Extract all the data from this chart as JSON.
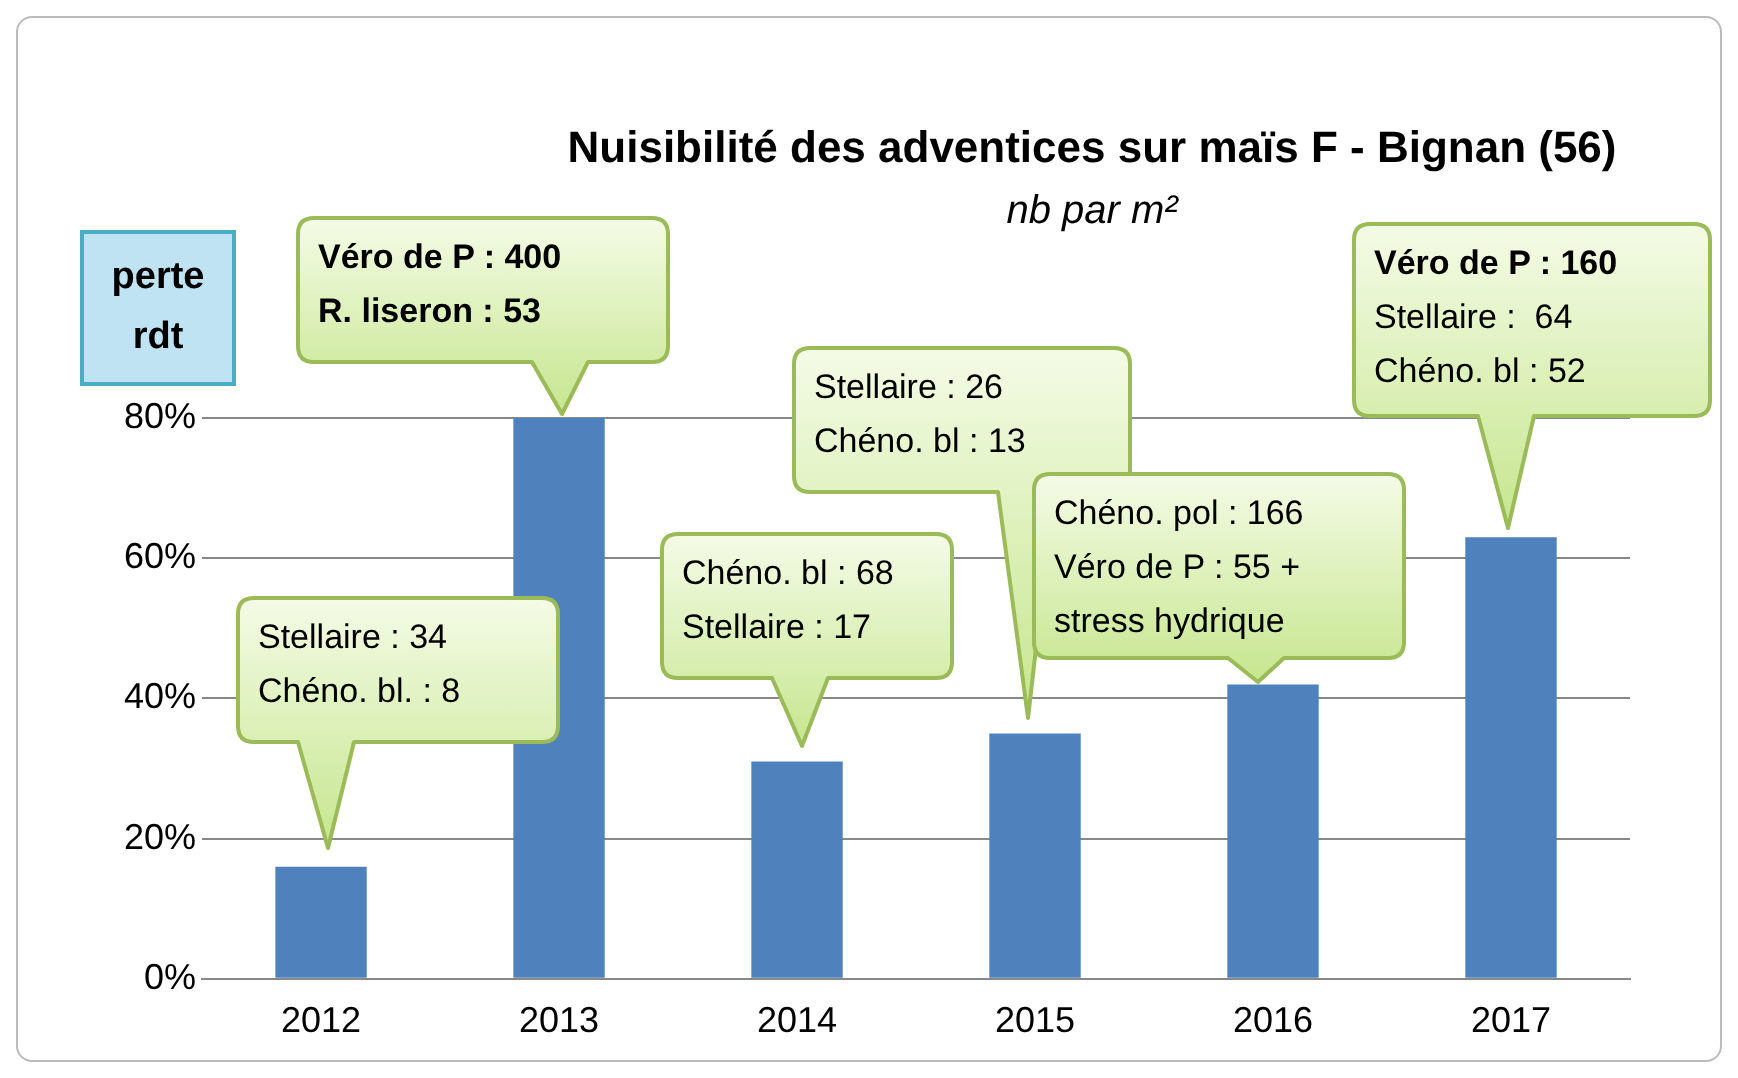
{
  "chart_data": {
    "type": "bar",
    "title": "Nuisibilité des adventices sur maïs F - Bignan (56)",
    "subtitle": "nb par m²",
    "ylabel": "perte rdt",
    "categories": [
      "2012",
      "2013",
      "2014",
      "2015",
      "2016",
      "2017"
    ],
    "values": [
      16,
      80,
      31,
      35,
      42,
      63
    ],
    "color": "#4f81bd",
    "ylim": [
      0,
      80
    ],
    "yticks": [
      {
        "value": 0,
        "label": "0%"
      },
      {
        "value": 20,
        "label": "20%"
      },
      {
        "value": 40,
        "label": "40%"
      },
      {
        "value": 60,
        "label": "60%"
      },
      {
        "value": 80,
        "label": "80%"
      }
    ],
    "grid": "y",
    "legend": false,
    "annotations": [
      "Stellaire : 34\nChéno. bl. : 8",
      "Véro de P : 400\nR. liseron : 53",
      "Chéno. bl : 68\nStellaire : 17",
      "Stellaire : 26\nChéno. bl : 13",
      "Chéno. pol : 166\nVéro de P : 55 +\nstress hydrique",
      "Véro de P : 160\nStellaire :  64\nChéno. bl : 52"
    ]
  }
}
